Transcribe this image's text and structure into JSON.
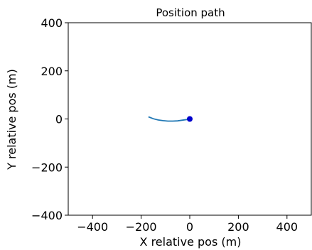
{
  "chart_data": {
    "type": "line",
    "title": "Position path",
    "xlabel": "X relative pos (m)",
    "ylabel": "Y relative pos (m)",
    "xlim": [
      -500,
      500
    ],
    "ylim": [
      -400,
      400
    ],
    "xticks": [
      -400,
      -200,
      0,
      200,
      400
    ],
    "yticks": [
      -400,
      -200,
      0,
      200,
      400
    ],
    "xtick_labels": [
      "−400",
      "−200",
      "0",
      "200",
      "400"
    ],
    "ytick_labels": [
      "−400",
      "−200",
      "0",
      "200",
      "400"
    ],
    "grid": false,
    "series": [
      {
        "x": [
          -170,
          -150,
          -130,
          -110,
          -90,
          -70,
          -50,
          -30,
          -10,
          0
        ],
        "y": [
          9,
          1,
          -4,
          -7,
          -9,
          -9,
          -8,
          -5,
          -2,
          0
        ],
        "color": "#1f77b4"
      }
    ],
    "markers": [
      {
        "x": 0,
        "y": 0,
        "color": "#0000cc"
      }
    ]
  }
}
